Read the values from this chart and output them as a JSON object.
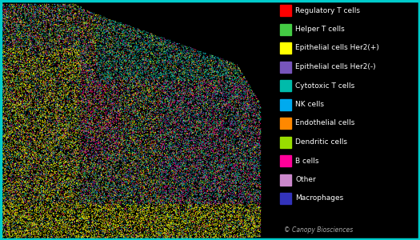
{
  "legend_entries": [
    {
      "label": "Regulatory T cells",
      "color": "#ff0000"
    },
    {
      "label": "Helper T cells",
      "color": "#44cc44"
    },
    {
      "label": "Epithelial cells Her2(+)",
      "color": "#ffff00"
    },
    {
      "label": "Epithelial cells Her2(-)",
      "color": "#7755bb"
    },
    {
      "label": "Cytotoxic T cells",
      "color": "#00bbaa"
    },
    {
      "label": "NK cells",
      "color": "#00aaee"
    },
    {
      "label": "Endothelial cells",
      "color": "#ff8800"
    },
    {
      "label": "Dendritic cells",
      "color": "#99dd00"
    },
    {
      "label": "B cells",
      "color": "#ff0099"
    },
    {
      "label": "Other",
      "color": "#cc88cc"
    },
    {
      "label": "Macrophages",
      "color": "#3333bb"
    }
  ],
  "background_color": "#000000",
  "border_color": "#00cccc",
  "border_linewidth": 2.5,
  "copyright_text": "© Canopy Biosciences",
  "n_points": 55000,
  "seed": 42,
  "weights": [
    0.06,
    0.07,
    0.2,
    0.07,
    0.2,
    0.06,
    0.04,
    0.07,
    0.12,
    0.05,
    0.06
  ],
  "legend_font_size": 6.5,
  "fig_width": 5.25,
  "fig_height": 3.0,
  "fig_dpi": 100
}
